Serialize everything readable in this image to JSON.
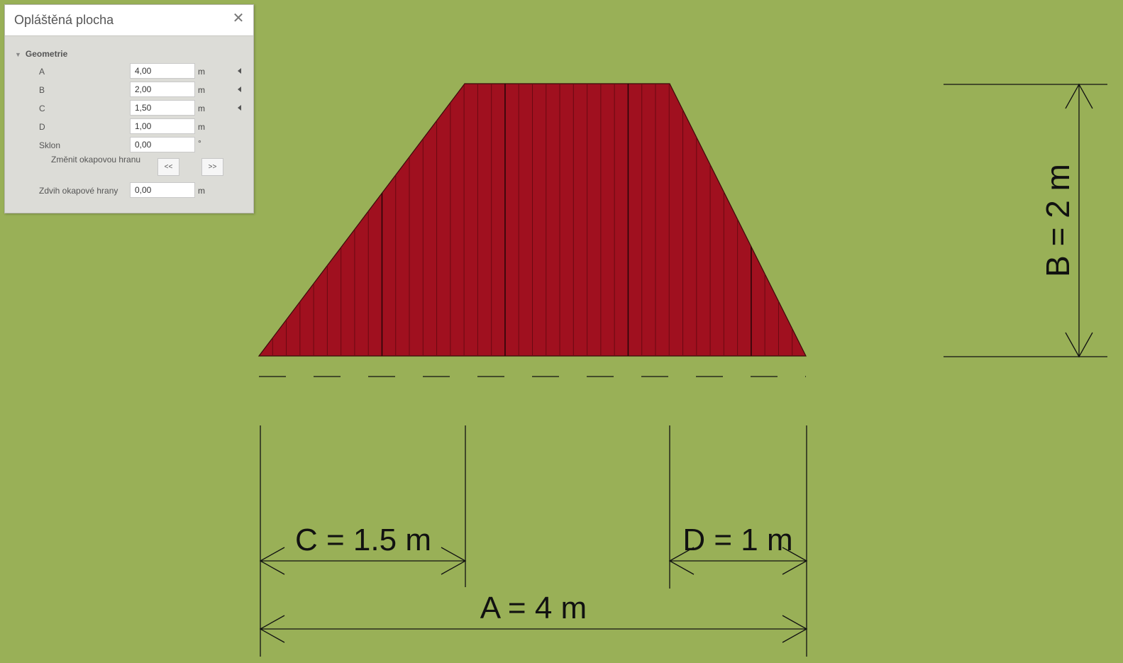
{
  "panel": {
    "title": "Opláštěná plocha",
    "close_icon": "close-icon",
    "section_label": "Geometrie",
    "fields": [
      {
        "label": "A",
        "value": "4,00",
        "unit": "m"
      },
      {
        "label": "B",
        "value": "2,00",
        "unit": "m"
      },
      {
        "label": "C",
        "value": "1,50",
        "unit": "m"
      },
      {
        "label": "D",
        "value": "1,00",
        "unit": "m"
      },
      {
        "label": "Sklon",
        "value": "0,00",
        "unit": "°"
      }
    ],
    "change_eave_label": "Změnit okapovou hranu",
    "prev_button": "<<",
    "next_button": ">>",
    "eave_lift": {
      "label": "Zdvih okapové hrany",
      "value": "0,00",
      "unit": "m"
    }
  },
  "drawing": {
    "colors": {
      "background": "#99b057",
      "cladding": "#a0101f",
      "lines": "#111111"
    },
    "dimensions": {
      "A": {
        "label": "A = 4 m",
        "value": 4
      },
      "B": {
        "label": "B = 2 m",
        "value": 2
      },
      "C": {
        "label": "C = 1.5 m",
        "value": 1.5
      },
      "D": {
        "label": "D = 1 m",
        "value": 1
      }
    }
  }
}
